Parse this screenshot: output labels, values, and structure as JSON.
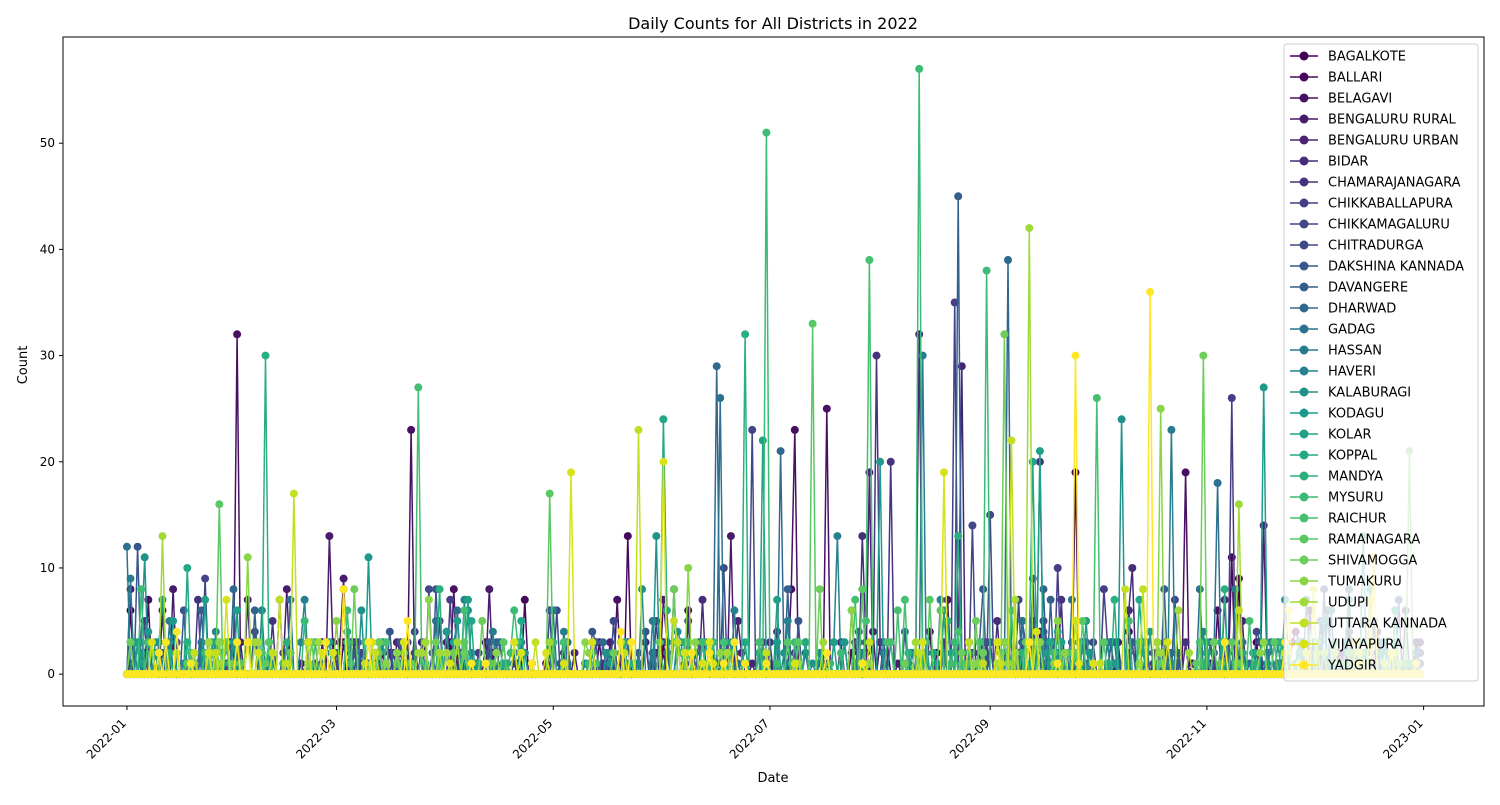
{
  "chart_data": {
    "type": "line",
    "title": "Daily Counts for All Districts in 2022",
    "xlabel": "Date",
    "ylabel": "Count",
    "x_ticks": [
      "2022-01",
      "2022-03",
      "2022-05",
      "2022-07",
      "2022-09",
      "2022-11",
      "2023-01"
    ],
    "x_tick_dates": [
      "2022-01-01",
      "2022-03-01",
      "2022-05-01",
      "2022-07-01",
      "2022-09-01",
      "2022-11-01",
      "2023-01-01"
    ],
    "xlim": [
      "2021-12-14",
      "2023-01-18"
    ],
    "y_ticks": [
      "0",
      "10",
      "20",
      "30",
      "40",
      "50"
    ],
    "ylim": [
      -3,
      60
    ],
    "marker": "circle",
    "legend_position": "upper right",
    "series": [
      {
        "name": "BAGALKOTE",
        "color": "#440154",
        "peaks": [
          [
            "2022-01-02",
            6
          ],
          [
            "2022-05-05",
            3
          ],
          [
            "2022-10-10",
            4
          ],
          [
            "2022-11-10",
            9
          ]
        ]
      },
      {
        "name": "BALLARI",
        "color": "#46085c",
        "peaks": [
          [
            "2022-01-11",
            6
          ],
          [
            "2022-05-22",
            13
          ],
          [
            "2022-09-25",
            19
          ],
          [
            "2022-11-08",
            11
          ]
        ]
      },
      {
        "name": "BELAGAVI",
        "color": "#471063",
        "peaks": [
          [
            "2022-02-01",
            32
          ],
          [
            "2022-03-22",
            23
          ],
          [
            "2022-07-08",
            23
          ],
          [
            "2022-07-17",
            25
          ],
          [
            "2022-10-26",
            19
          ]
        ]
      },
      {
        "name": "BENGALURU RURAL",
        "color": "#481b6d",
        "peaks": [
          [
            "2022-02-15",
            8
          ],
          [
            "2022-02-27",
            13
          ],
          [
            "2022-03-03",
            9
          ],
          [
            "2022-04-13",
            8
          ],
          [
            "2022-06-20",
            13
          ]
        ]
      },
      {
        "name": "BENGALURU URBAN",
        "color": "#482373",
        "peaks": [
          [
            "2022-07-29",
            19
          ],
          [
            "2022-08-24",
            29
          ],
          [
            "2022-11-17",
            14
          ]
        ]
      },
      {
        "name": "BIDAR",
        "color": "#472c7a",
        "peaks": [
          [
            "2022-07-27",
            13
          ],
          [
            "2022-08-12",
            32
          ],
          [
            "2022-10-11",
            10
          ]
        ]
      },
      {
        "name": "CHAMARAJANAGARA",
        "color": "#46337f",
        "peaks": [
          [
            "2022-07-31",
            30
          ],
          [
            "2022-08-04",
            20
          ],
          [
            "2022-09-15",
            20
          ]
        ]
      },
      {
        "name": "CHIKKABALLAPURA",
        "color": "#433e85",
        "peaks": [
          [
            "2022-08-22",
            35
          ],
          [
            "2022-09-20",
            10
          ],
          [
            "2022-11-08",
            26
          ]
        ]
      },
      {
        "name": "CHIKKAMAGALURU",
        "color": "#404688",
        "peaks": [
          [
            "2022-01-23",
            9
          ],
          [
            "2022-06-26",
            23
          ],
          [
            "2022-08-27",
            14
          ]
        ]
      },
      {
        "name": "CHITRADURGA",
        "color": "#3e4989",
        "peaks": [
          [
            "2022-03-23",
            4
          ],
          [
            "2022-06-18",
            10
          ],
          [
            "2022-09-01",
            15
          ]
        ]
      },
      {
        "name": "DAKSHINA KANNADA",
        "color": "#39568c",
        "peaks": [
          [
            "2022-01-04",
            12
          ],
          [
            "2022-05-12",
            4
          ],
          [
            "2022-09-13",
            9
          ]
        ]
      },
      {
        "name": "DAVANGERE",
        "color": "#355f8d",
        "peaks": [
          [
            "2022-08-23",
            45
          ],
          [
            "2022-12-05",
            6
          ]
        ]
      },
      {
        "name": "DHARWAD",
        "color": "#31688e",
        "peaks": [
          [
            "2022-06-16",
            29
          ],
          [
            "2022-07-04",
            21
          ],
          [
            "2022-09-06",
            39
          ]
        ]
      },
      {
        "name": "GADAG",
        "color": "#2c728e",
        "peaks": [
          [
            "2022-01-01",
            12
          ],
          [
            "2022-06-17",
            26
          ],
          [
            "2022-11-04",
            18
          ]
        ]
      },
      {
        "name": "HASSAN",
        "color": "#287c8e",
        "peaks": [
          [
            "2022-01-02",
            9
          ],
          [
            "2022-08-13",
            30
          ],
          [
            "2022-10-22",
            23
          ]
        ]
      },
      {
        "name": "HAVERI",
        "color": "#26828e",
        "peaks": [
          [
            "2022-02-20",
            7
          ],
          [
            "2022-07-20",
            13
          ],
          [
            "2022-12-06",
            6
          ]
        ]
      },
      {
        "name": "KALABURAGI",
        "color": "#21918c",
        "peaks": [
          [
            "2022-01-06",
            11
          ],
          [
            "2022-05-30",
            13
          ],
          [
            "2022-10-08",
            24
          ]
        ]
      },
      {
        "name": "KODAGU",
        "color": "#1f9a8a",
        "peaks": [
          [
            "2022-03-10",
            11
          ],
          [
            "2022-08-01",
            20
          ],
          [
            "2022-11-17",
            27
          ]
        ]
      },
      {
        "name": "KOLAR",
        "color": "#1fa188",
        "peaks": [
          [
            "2022-06-29",
            22
          ],
          [
            "2022-09-15",
            21
          ],
          [
            "2022-12-15",
            13
          ]
        ]
      },
      {
        "name": "KOPPAL",
        "color": "#22a884",
        "peaks": [
          [
            "2022-01-18",
            10
          ],
          [
            "2022-06-01",
            24
          ],
          [
            "2022-09-13",
            20
          ]
        ]
      },
      {
        "name": "MANDYA",
        "color": "#2ab07f",
        "peaks": [
          [
            "2022-02-09",
            30
          ],
          [
            "2022-06-24",
            32
          ],
          [
            "2022-08-23",
            13
          ]
        ]
      },
      {
        "name": "MYSURU",
        "color": "#3bbb75",
        "peaks": [
          [
            "2022-06-30",
            51
          ],
          [
            "2022-08-12",
            57
          ],
          [
            "2022-08-31",
            38
          ]
        ]
      },
      {
        "name": "RAICHUR",
        "color": "#45bf70",
        "peaks": [
          [
            "2022-03-24",
            27
          ],
          [
            "2022-07-29",
            39
          ],
          [
            "2022-10-01",
            26
          ]
        ]
      },
      {
        "name": "RAMANAGARA",
        "color": "#5ac864",
        "peaks": [
          [
            "2022-01-27",
            16
          ],
          [
            "2022-04-30",
            17
          ],
          [
            "2022-07-13",
            33
          ]
        ]
      },
      {
        "name": "SHIVAMOGGA",
        "color": "#6ccd5a",
        "peaks": [
          [
            "2022-09-05",
            32
          ],
          [
            "2022-10-31",
            30
          ],
          [
            "2022-12-28",
            21
          ]
        ]
      },
      {
        "name": "TUMAKURU",
        "color": "#89d548",
        "peaks": [
          [
            "2022-02-04",
            11
          ],
          [
            "2022-06-08",
            10
          ],
          [
            "2022-10-19",
            25
          ]
        ]
      },
      {
        "name": "UDUPI",
        "color": "#a0da39",
        "peaks": [
          [
            "2022-01-11",
            13
          ],
          [
            "2022-09-12",
            42
          ],
          [
            "2022-11-10",
            16
          ]
        ]
      },
      {
        "name": "UTTARA KANNADA",
        "color": "#c2df23",
        "peaks": [
          [
            "2022-02-17",
            17
          ],
          [
            "2022-05-25",
            23
          ],
          [
            "2022-09-07",
            22
          ]
        ]
      },
      {
        "name": "VIJAYAPURA",
        "color": "#d8e219",
        "peaks": [
          [
            "2022-05-06",
            19
          ],
          [
            "2022-06-01",
            20
          ],
          [
            "2022-08-19",
            19
          ]
        ]
      },
      {
        "name": "YADGIR",
        "color": "#fde725",
        "peaks": [
          [
            "2022-09-25",
            30
          ],
          [
            "2022-10-16",
            36
          ],
          [
            "2022-12-18",
            11
          ]
        ]
      }
    ]
  }
}
